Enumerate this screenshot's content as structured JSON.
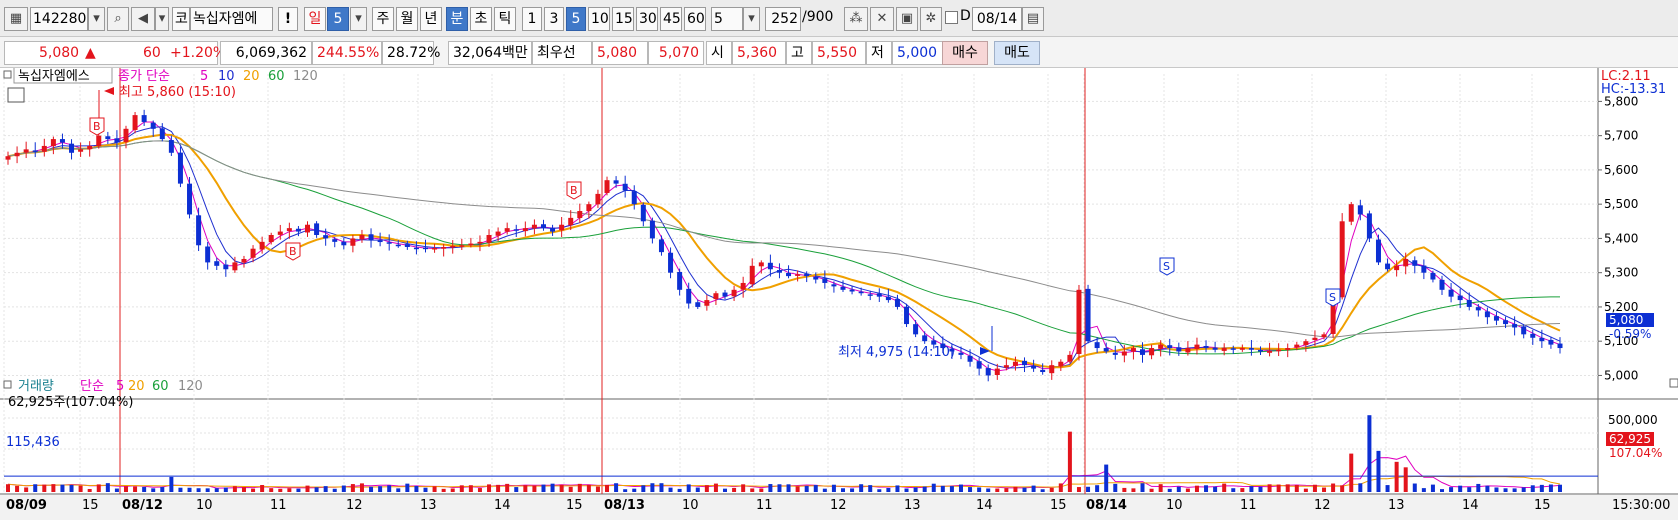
{
  "toolbar": {
    "code": "142280",
    "market": "코",
    "name": "녹십자엠에",
    "alert": "!",
    "period_day": "일",
    "period_day_num": "5",
    "periods": [
      "주",
      "월",
      "년"
    ],
    "period_min": "분",
    "period_sec": "초",
    "period_tick": "틱",
    "intervals": [
      "1",
      "3",
      "5",
      "10",
      "15",
      "30",
      "45",
      "60"
    ],
    "interval_selected": "5",
    "count_num": "5",
    "count": "252",
    "count_total": "/900",
    "d_label": "D",
    "date": "08/14"
  },
  "quote": {
    "price": "5,080",
    "arrow": "▲",
    "change": "60",
    "change_pct": "+1.20%",
    "volume": "6,069,362",
    "volume_ratio": "244.55%",
    "turnover": "28.72%",
    "amount": "32,064백만",
    "best_label": "최우선",
    "ask": "5,080",
    "bid": "5,070",
    "open_label": "시",
    "open": "5,360",
    "high_label": "고",
    "high": "5,550",
    "low_label": "저",
    "low": "5,000",
    "buy_label": "매수",
    "sell_label": "매도"
  },
  "price_panel": {
    "name_label": "녹십자엠에스",
    "legend_label": "종가 단순",
    "ma_periods": [
      "5",
      "10",
      "20",
      "60",
      "120"
    ],
    "lc": "LC:2.11",
    "hc": "HC:-13.31",
    "current_price": "5,080",
    "current_pct": "-0.59%",
    "high_annotation": "최고 5,860 (15:10)",
    "low_annotation": "최저 4,975 (14:10)",
    "signals": [
      "B",
      "B",
      "B",
      "S",
      "S"
    ]
  },
  "volume_panel": {
    "title": "거래량",
    "legend_label": "단순",
    "ma_periods": [
      "5",
      "20",
      "60",
      "120"
    ],
    "info": "62,925주(107.04%)",
    "level_label": "115,436",
    "y_tick": "500,000",
    "current_volume": "62,925",
    "current_pct": "107.04%"
  },
  "x_axis": {
    "labels": [
      "08/09",
      "15",
      "08/12",
      "10",
      "11",
      "12",
      "13",
      "14",
      "15",
      "08/13",
      "10",
      "11",
      "12",
      "13",
      "14",
      "15",
      "08/14",
      "10",
      "11",
      "12",
      "13",
      "14",
      "15"
    ],
    "bold_labels": [
      "08/09",
      "08/12",
      "08/13",
      "08/14"
    ],
    "time": "15:30:00"
  },
  "colors": {
    "up": "#e3141c",
    "down": "#0c2fd3",
    "ma5": "#e000c0",
    "ma10": "#2030d0",
    "ma20": "#f0a000",
    "ma60": "#1aa03a",
    "ma120": "#8c8c8c",
    "divider": "#e02020"
  },
  "chart_data": {
    "type": "candlestick",
    "interval": "5-minute",
    "y_ticks": [
      5000,
      5100,
      5200,
      5300,
      5400,
      5500,
      5600,
      5700,
      5800
    ],
    "ylim": [
      4940,
      5880
    ],
    "volume_ylim": [
      0,
      700000
    ],
    "sessions": [
      {
        "label": "08/09",
        "hours": [
          "15"
        ]
      },
      {
        "label": "08/12",
        "hours": [
          "10",
          "11",
          "12",
          "13",
          "14",
          "15"
        ]
      },
      {
        "label": "08/13",
        "hours": [
          "10",
          "11",
          "12",
          "13",
          "14",
          "15"
        ]
      },
      {
        "label": "08/14",
        "hours": [
          "10",
          "11",
          "12",
          "13",
          "14",
          "15"
        ]
      }
    ],
    "close": [
      5640,
      5650,
      5660,
      5655,
      5670,
      5690,
      5680,
      5650,
      5660,
      5670,
      5700,
      5690,
      5680,
      5720,
      5760,
      5740,
      5720,
      5690,
      5650,
      5560,
      5470,
      5380,
      5330,
      5320,
      5310,
      5330,
      5340,
      5370,
      5390,
      5410,
      5420,
      5430,
      5420,
      5440,
      5410,
      5400,
      5390,
      5380,
      5400,
      5410,
      5395,
      5390,
      5385,
      5380,
      5375,
      5370,
      5370,
      5372,
      5375,
      5378,
      5380,
      5385,
      5390,
      5410,
      5420,
      5430,
      5425,
      5430,
      5440,
      5430,
      5420,
      5440,
      5460,
      5480,
      5500,
      5530,
      5570,
      5560,
      5540,
      5500,
      5450,
      5400,
      5360,
      5300,
      5250,
      5210,
      5200,
      5220,
      5240,
      5230,
      5250,
      5270,
      5320,
      5330,
      5310,
      5300,
      5290,
      5295,
      5290,
      5280,
      5270,
      5260,
      5250,
      5245,
      5240,
      5235,
      5230,
      5220,
      5200,
      5150,
      5120,
      5100,
      5090,
      5080,
      5070,
      5060,
      5040,
      5020,
      5000,
      5020,
      5030,
      5040,
      5030,
      5020,
      5010,
      5030,
      5040,
      5060,
      5250,
      5100,
      5080,
      5070,
      5060,
      5070,
      5080,
      5060,
      5080,
      5090,
      5080,
      5070,
      5080,
      5090,
      5080,
      5075,
      5080,
      5078,
      5080,
      5075,
      5070,
      5072,
      5075,
      5080,
      5090,
      5100,
      5110,
      5120,
      5230,
      5450,
      5500,
      5470,
      5400,
      5330,
      5310,
      5320,
      5340,
      5320,
      5300,
      5280,
      5250,
      5230,
      5220,
      5200,
      5190,
      5170,
      5160,
      5150,
      5140,
      5120,
      5110,
      5100,
      5090,
      5080
    ],
    "ma_series": [
      "5",
      "10",
      "20",
      "60",
      "120"
    ],
    "price_high": 5860,
    "price_low": 4975,
    "volume_level": 115436
  }
}
